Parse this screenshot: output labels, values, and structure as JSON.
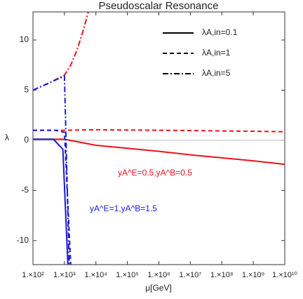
{
  "chart_data": {
    "type": "line",
    "title": "Pseudoscalar Resonance",
    "x_label": "μ[GeV]",
    "y_label": "λ",
    "x_scale": "log",
    "xlim": [
      100,
      10000000000
    ],
    "ylim": [
      -12.4,
      12.8
    ],
    "xticks": [
      {
        "value": 100,
        "label": "1.×10²"
      },
      {
        "value": 1000,
        "label": "1.×10³"
      },
      {
        "value": 10000,
        "label": "1.×10⁴"
      },
      {
        "value": 100000,
        "label": "1.×10⁵"
      },
      {
        "value": 1000000,
        "label": "1.×10⁶"
      },
      {
        "value": 10000000,
        "label": "1.×10⁷"
      },
      {
        "value": 100000000,
        "label": "1.×10⁸"
      },
      {
        "value": 1000000000,
        "label": "1.×10⁹"
      },
      {
        "value": 10000000000,
        "label": "1.×10¹⁰"
      }
    ],
    "yticks": [
      -10,
      -5,
      0,
      5,
      10
    ],
    "zero_line": true,
    "legend_position": "upper right",
    "legend": [
      {
        "label": "λA,in=0.1",
        "dash": "solid"
      },
      {
        "label": "λA,in=1",
        "dash": "dashed"
      },
      {
        "label": "λA,in=5",
        "dash": "dashdot"
      }
    ],
    "annotations": [
      {
        "text": "yA^E=0.5,yA^B=0.5",
        "color": "#e8141c"
      },
      {
        "text": "yA^E=1,yA^B=1.5",
        "color": "#1a1ad6"
      }
    ],
    "series": [
      {
        "color": "#e8141c",
        "dash": "solid",
        "x": [
          100,
          1000,
          10000,
          100000,
          1000000,
          10000000,
          100000000,
          1000000000,
          10000000000
        ],
        "values": [
          0.1,
          0.1,
          -0.5,
          -0.8,
          -1.1,
          -1.45,
          -1.75,
          -2.05,
          -2.4
        ]
      },
      {
        "color": "#e8141c",
        "dash": "dashed",
        "x": [
          100,
          1000,
          10000,
          100000,
          1000000,
          10000000,
          100000000,
          1000000000,
          10000000000
        ],
        "values": [
          1,
          1,
          1.05,
          1.02,
          1,
          0.97,
          0.93,
          0.9,
          0.85
        ]
      },
      {
        "color": "#e8141c",
        "dash": "dashdot",
        "x": [
          100,
          316,
          1000,
          1585,
          2512,
          3981,
          5754
        ],
        "values": [
          5,
          5.7,
          6.5,
          7.5,
          9,
          11,
          12.8
        ]
      },
      {
        "color": "#1a1ad6",
        "dash": "solid",
        "x": [
          100,
          447,
          891,
          1288
        ],
        "values": [
          0.1,
          0.1,
          -0.9,
          -12.4
        ]
      },
      {
        "color": "#1a1ad6",
        "dash": "dashed",
        "x": [
          100,
          501,
          1000,
          1585
        ],
        "values": [
          1,
          1,
          0.8,
          -12.4
        ]
      },
      {
        "color": "#1a1ad6",
        "dash": "dashdot",
        "x": [
          100,
          316,
          1000,
          1413
        ],
        "values": [
          5,
          5.7,
          6.4,
          -12.4
        ]
      }
    ]
  }
}
